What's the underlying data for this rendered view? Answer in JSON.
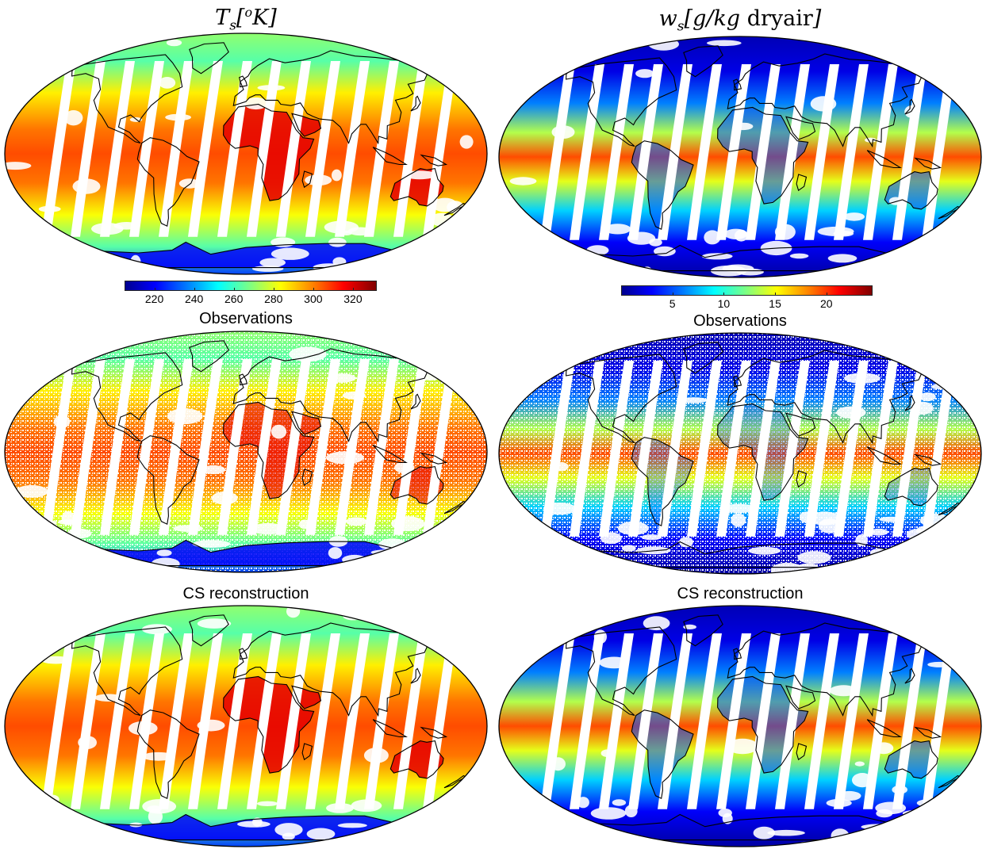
{
  "panels": {
    "left": {
      "title": "T_s[°K]",
      "colorbar": {
        "ticks": [
          220,
          240,
          260,
          280,
          300,
          320
        ],
        "range": [
          205,
          332
        ]
      },
      "rows": [
        "",
        "Observations",
        "CS reconstruction"
      ]
    },
    "right": {
      "title": "w_s[g/kg dryair]",
      "colorbar": {
        "ticks": [
          5,
          10,
          15,
          20
        ],
        "range": [
          0,
          24.5
        ]
      },
      "rows": [
        "",
        "Observations",
        "CS reconstruction"
      ]
    }
  },
  "labels": {
    "observations": "Observations",
    "cs_reconstruction": "CS reconstruction"
  },
  "colormap": "jet",
  "colors": {
    "coastline": "#000000",
    "swath_gap": "#ffffff"
  }
}
